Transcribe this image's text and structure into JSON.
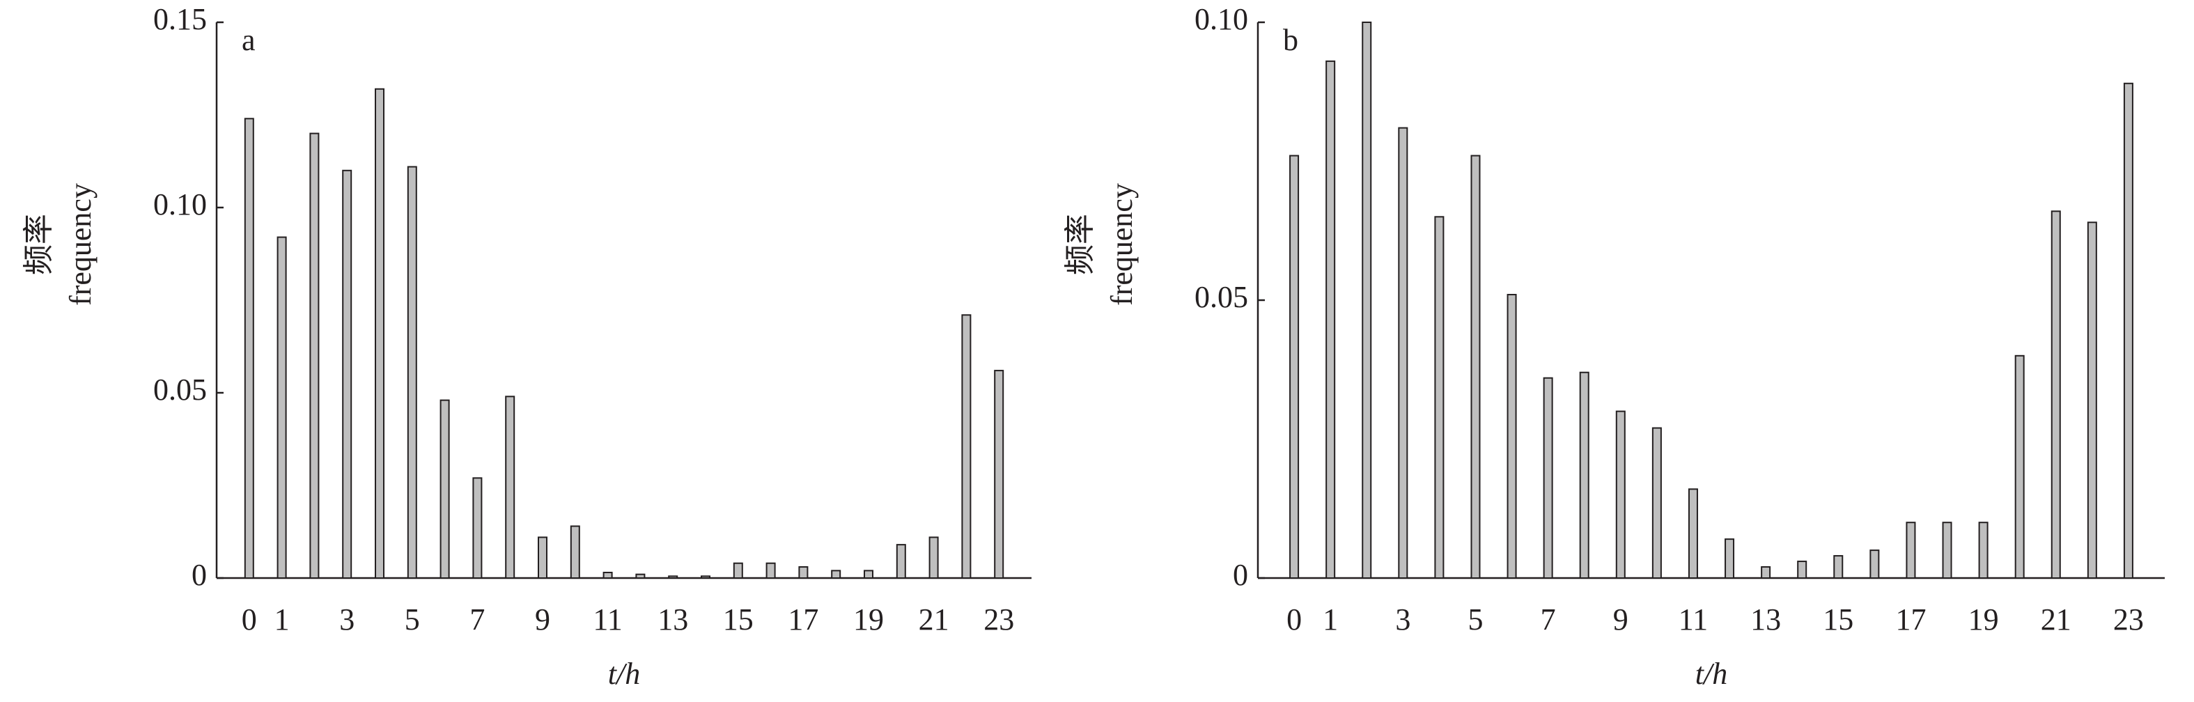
{
  "chart_data": [
    {
      "type": "bar",
      "panel_label": "a",
      "xlabel": "t/h",
      "ylabel": [
        "频率",
        "frequency"
      ],
      "color": "#bfbfbf",
      "categories": [
        "0",
        "1",
        null,
        "3",
        null,
        "5",
        null,
        "7",
        null,
        "9",
        null,
        "11",
        null,
        "13",
        null,
        "15",
        null,
        "17",
        null,
        "19",
        null,
        "21",
        null,
        "23"
      ],
      "values": [
        0.124,
        0.092,
        0.12,
        0.11,
        0.132,
        0.111,
        0.048,
        0.027,
        0.049,
        0.011,
        0.014,
        0.0015,
        0.001,
        0.0005,
        0.0005,
        0.004,
        0.004,
        0.003,
        0.002,
        0.002,
        0.009,
        0.011,
        0.071,
        0.056
      ],
      "ylim": [
        0,
        0.15
      ],
      "yticks": [
        0,
        0.05,
        {
          "value": 0.1,
          "label": "0.10"
        },
        0.15
      ]
    },
    {
      "type": "bar",
      "panel_label": "b",
      "xlabel": "t/h",
      "ylabel": [
        "频率",
        "frequency"
      ],
      "color": "#bfbfbf",
      "categories": [
        "0",
        "1",
        null,
        "3",
        null,
        "5",
        null,
        "7",
        null,
        "9",
        null,
        "11",
        null,
        "13",
        null,
        "15",
        null,
        "17",
        null,
        "19",
        null,
        "21",
        null,
        "23"
      ],
      "values": [
        0.076,
        0.093,
        0.1,
        0.081,
        0.065,
        0.076,
        0.051,
        0.036,
        0.037,
        0.03,
        0.027,
        0.016,
        0.007,
        0.002,
        0.003,
        0.004,
        0.005,
        0.01,
        0.01,
        0.01,
        0.04,
        0.066,
        0.064,
        0.089
      ],
      "ylim": [
        0,
        0.1
      ],
      "yticks": [
        0,
        0.05,
        {
          "value": 0.1,
          "label": "0.10"
        }
      ]
    }
  ]
}
